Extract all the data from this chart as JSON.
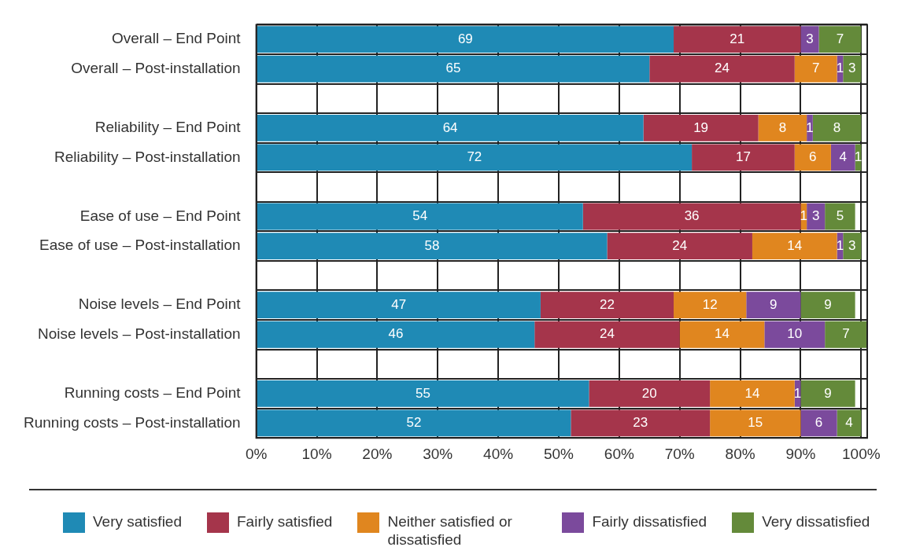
{
  "chart_data": {
    "type": "bar",
    "orientation": "horizontal",
    "stacked": true,
    "grid": true,
    "legend": "bottom",
    "data_labels": true,
    "categories": [
      "Overall – End Point",
      "Overall – Post-installation",
      null,
      "Reliability – End Point",
      "Reliability – Post-installation",
      null,
      "Ease of use – End Point",
      "Ease of use – Post-installation",
      null,
      "Noise levels – End Point",
      "Noise levels – Post-installation",
      null,
      "Running costs – End Point",
      "Running costs – Post-installation"
    ],
    "xlim": [
      0,
      101
    ],
    "xticks": [
      {
        "value": 0,
        "label": "0%"
      },
      {
        "value": 10,
        "label": "10%"
      },
      {
        "value": 20,
        "label": "20%"
      },
      {
        "value": 30,
        "label": "30%"
      },
      {
        "value": 40,
        "label": "40%"
      },
      {
        "value": 50,
        "label": "50%"
      },
      {
        "value": 60,
        "label": "60%"
      },
      {
        "value": 70,
        "label": "70%"
      },
      {
        "value": 80,
        "label": "80%"
      },
      {
        "value": 90,
        "label": "90%"
      },
      {
        "value": 100,
        "label": "100%"
      }
    ],
    "series": [
      {
        "name": "Very satisfied",
        "color": "#1f8ab5",
        "values": [
          69,
          65,
          null,
          64,
          72,
          null,
          54,
          58,
          null,
          47,
          46,
          null,
          55,
          52
        ]
      },
      {
        "name": "Fairly satisfied",
        "color": "#a5354b",
        "values": [
          21,
          24,
          null,
          19,
          17,
          null,
          36,
          24,
          null,
          22,
          24,
          null,
          20,
          23
        ]
      },
      {
        "name": "Neither satisfied or dissatisfied",
        "color": "#e0861f",
        "values": [
          null,
          7,
          null,
          8,
          6,
          null,
          1,
          14,
          null,
          12,
          14,
          null,
          14,
          15
        ]
      },
      {
        "name": "Fairly dissatisfied",
        "color": "#7b4a9c",
        "values": [
          3,
          1,
          null,
          1,
          4,
          null,
          3,
          1,
          null,
          9,
          10,
          null,
          1,
          6
        ]
      },
      {
        "name": "Very dissatisfied",
        "color": "#648a3a",
        "values": [
          7,
          3,
          null,
          8,
          1,
          null,
          5,
          3,
          null,
          9,
          7,
          null,
          9,
          4
        ]
      }
    ]
  }
}
